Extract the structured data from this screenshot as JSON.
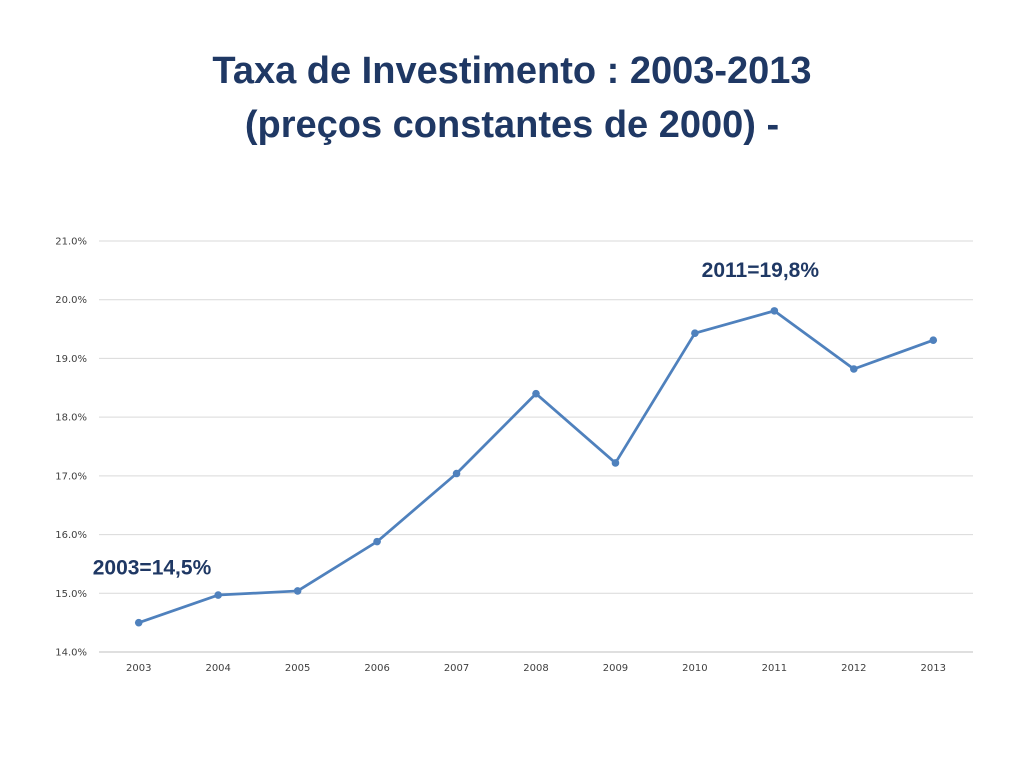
{
  "slide": {
    "title_line1": "Taxa de Investimento : 2003-2013",
    "title_line2": "(preços constantes de 2000) -"
  },
  "chart_data": {
    "type": "line",
    "title": "Taxa de Investimento : 2003-2013 (preços constantes de 2000) -",
    "xlabel": "",
    "ylabel": "",
    "categories": [
      "2003",
      "2004",
      "2005",
      "2006",
      "2007",
      "2008",
      "2009",
      "2010",
      "2011",
      "2012",
      "2013"
    ],
    "series": [
      {
        "values": [
          14.5,
          14.97,
          15.04,
          15.88,
          17.04,
          18.4,
          17.22,
          19.43,
          19.81,
          18.82,
          19.31
        ]
      }
    ],
    "ylim": [
      14.0,
      21.0
    ],
    "yticks": [
      14.0,
      15.0,
      16.0,
      17.0,
      18.0,
      19.0,
      20.0,
      21.0
    ],
    "ytick_labels": [
      "14.0%",
      "15.0%",
      "16.0%",
      "17.0%",
      "18.0%",
      "19.0%",
      "20.0%",
      "21.0%"
    ],
    "grid": true,
    "legend": "none",
    "annotations": [
      {
        "text": "2003=14,5%",
        "category": "2003",
        "position": "above-left"
      },
      {
        "text": "2011=19,8%",
        "category": "2011",
        "position": "above"
      }
    ],
    "colors": {
      "line": "#4f81bd",
      "grid": "#d9d9d9",
      "annotation": "#1f3864"
    }
  }
}
